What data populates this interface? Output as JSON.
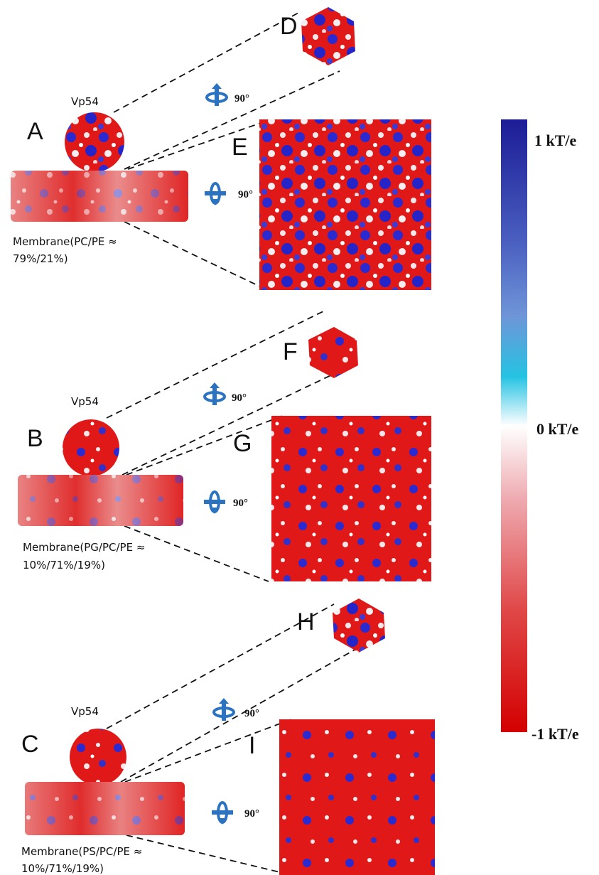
{
  "panels": [
    {
      "letter": "A",
      "protein": "Vp54",
      "membrane": [
        "Membrane(PC/PE ≈",
        "79%/21%)"
      ],
      "top_view": {
        "letter": "D",
        "rotation": "90°"
      },
      "membrane_view": {
        "letter": "E",
        "rotation": "90°"
      }
    },
    {
      "letter": "B",
      "protein": "Vp54",
      "membrane": [
        "Membrane(PG/PC/PE ≈",
        "10%/71%/19%)"
      ],
      "top_view": {
        "letter": "F",
        "rotation": "90°"
      },
      "membrane_view": {
        "letter": "G",
        "rotation": "90°"
      }
    },
    {
      "letter": "C",
      "protein": "Vp54",
      "membrane": [
        "Membrane(PS/PC/PE ≈",
        "10%/71%/19%)"
      ],
      "top_view": {
        "letter": "H",
        "rotation": "90°"
      },
      "membrane_view": {
        "letter": "I",
        "rotation": "90°"
      }
    }
  ],
  "colorbar": {
    "labels": [
      "1 kT/e",
      "0 kT/e",
      "-1 kT/e"
    ]
  }
}
